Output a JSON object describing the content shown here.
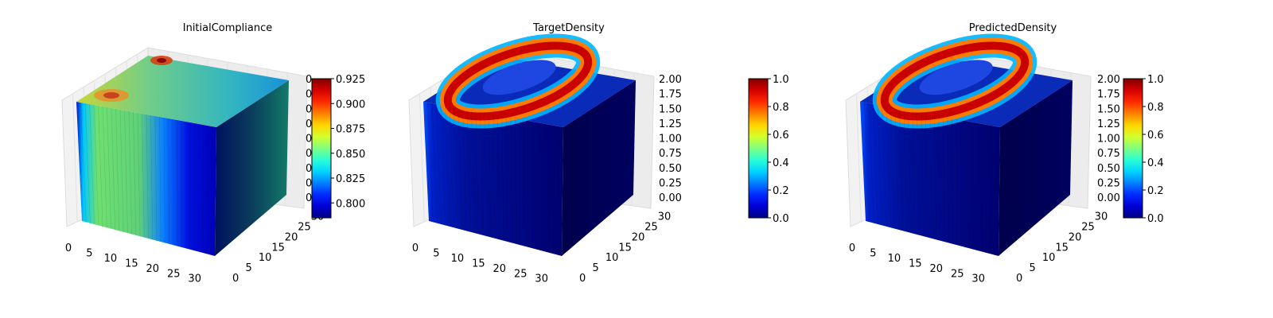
{
  "chart_data": [
    {
      "type": "voxel-3d",
      "title": "InitialCompliance",
      "x_ticks": [
        "0",
        "5",
        "10",
        "15",
        "20",
        "25",
        "30"
      ],
      "y_ticks": [
        "0",
        "5",
        "10",
        "15",
        "20",
        "25",
        "30"
      ],
      "z_ticks": [
        "0",
        "0",
        "0",
        "0",
        "0",
        "0",
        "0",
        "0",
        "0"
      ],
      "xlim": [
        0,
        32
      ],
      "ylim": [
        0,
        32
      ],
      "zlim": [
        0,
        2
      ],
      "colormap": "jet",
      "colorbar": {
        "min": 0.785,
        "max": 0.925,
        "ticks": [
          "0.800",
          "0.825",
          "0.850",
          "0.875",
          "0.900",
          "0.925"
        ]
      },
      "field_range": [
        0.79,
        0.91
      ]
    },
    {
      "type": "voxel-3d",
      "title": "TargetDensity",
      "x_ticks": [
        "0",
        "5",
        "10",
        "15",
        "20",
        "25",
        "30"
      ],
      "y_ticks": [
        "0",
        "5",
        "10",
        "15",
        "20",
        "25",
        "30"
      ],
      "z_ticks": [
        "0.00",
        "0.25",
        "0.50",
        "0.75",
        "1.00",
        "1.25",
        "1.50",
        "1.75",
        "2.00"
      ],
      "xlim": [
        0,
        32
      ],
      "ylim": [
        0,
        32
      ],
      "zlim": [
        0,
        2
      ],
      "colormap": "jet",
      "colorbar": {
        "min": 0.0,
        "max": 1.0,
        "ticks": [
          "0.0",
          "0.2",
          "0.4",
          "0.6",
          "0.8",
          "1.0"
        ]
      },
      "field_range": [
        0.0,
        1.0
      ]
    },
    {
      "type": "voxel-3d",
      "title": "PredictedDensity",
      "x_ticks": [
        "0",
        "5",
        "10",
        "15",
        "20",
        "25",
        "30"
      ],
      "y_ticks": [
        "0",
        "5",
        "10",
        "15",
        "20",
        "25",
        "30"
      ],
      "z_ticks": [
        "0.00",
        "0.25",
        "0.50",
        "0.75",
        "1.00",
        "1.25",
        "1.50",
        "1.75",
        "2.00"
      ],
      "xlim": [
        0,
        32
      ],
      "ylim": [
        0,
        32
      ],
      "zlim": [
        0,
        2
      ],
      "colormap": "jet",
      "colorbar": {
        "min": 0.0,
        "max": 1.0,
        "ticks": [
          "0.0",
          "0.2",
          "0.4",
          "0.6",
          "0.8",
          "1.0"
        ]
      },
      "field_range": [
        0.0,
        1.0
      ]
    }
  ]
}
